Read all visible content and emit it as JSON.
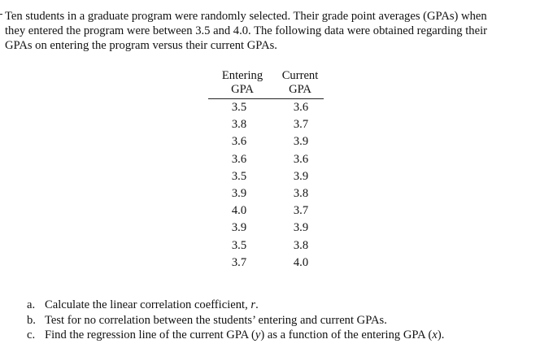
{
  "intro": {
    "lines": [
      "Ten students in a graduate program were randomly selected. Their grade point averages (GPAs) when",
      "they entered the program were between 3.5 and 4.0. The following data were obtained regarding their",
      "GPAs on entering the program versus their current GPAs."
    ]
  },
  "table": {
    "headers": {
      "entering_top": "Entering",
      "entering_bottom": "GPA",
      "current_top": "Current",
      "current_bottom": "GPA"
    },
    "rows": [
      {
        "entering": "3.5",
        "current": "3.6"
      },
      {
        "entering": "3.8",
        "current": "3.7"
      },
      {
        "entering": "3.6",
        "current": "3.9"
      },
      {
        "entering": "3.6",
        "current": "3.6"
      },
      {
        "entering": "3.5",
        "current": "3.9"
      },
      {
        "entering": "3.9",
        "current": "3.8"
      },
      {
        "entering": "4.0",
        "current": "3.7"
      },
      {
        "entering": "3.9",
        "current": "3.9"
      },
      {
        "entering": "3.5",
        "current": "3.8"
      },
      {
        "entering": "3.7",
        "current": "4.0"
      }
    ]
  },
  "questions": [
    {
      "letter": "a.",
      "text_html": "Calculate the linear correlation coefficient, <i>r</i>."
    },
    {
      "letter": "b.",
      "text_html": "Test for no correlation between the students’ entering and current GPAs."
    },
    {
      "letter": "c.",
      "text_html": "Find the regression line of the current GPA (<i>y</i>) as a function of the entering GPA (<i>x</i>)."
    }
  ]
}
